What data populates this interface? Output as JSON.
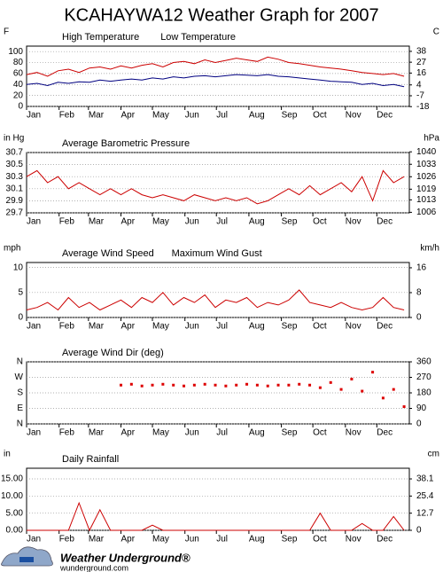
{
  "header": {
    "title": "KCAHAYWA12 Weather Graph for 2007"
  },
  "footer": {
    "brand": "Weather Underground®",
    "url": "wunderground.com"
  },
  "chart_data": [
    {
      "type": "line",
      "ylabel": "F",
      "y2label": "C",
      "grid": true,
      "x": [
        1,
        11,
        21,
        31,
        41,
        51,
        61,
        71,
        81,
        91,
        101,
        111,
        121,
        131,
        141,
        151,
        161,
        171,
        181,
        191,
        201,
        211,
        221,
        231,
        241,
        251,
        261,
        271,
        281,
        291,
        301,
        311,
        321,
        331,
        341,
        351,
        361
      ],
      "xlim": [
        1,
        366
      ],
      "xticks": [
        {
          "value": 1,
          "label": "Jan"
        },
        {
          "value": 32,
          "label": "Feb"
        },
        {
          "value": 60,
          "label": "Mar"
        },
        {
          "value": 91,
          "label": "Apr"
        },
        {
          "value": 121,
          "label": "May"
        },
        {
          "value": 152,
          "label": "Jun"
        },
        {
          "value": 182,
          "label": "Jul"
        },
        {
          "value": 213,
          "label": "Aug"
        },
        {
          "value": 244,
          "label": "Sep"
        },
        {
          "value": 274,
          "label": "Oct"
        },
        {
          "value": 305,
          "label": "Nov"
        },
        {
          "value": 335,
          "label": "Dec"
        }
      ],
      "ylim": [
        0,
        110
      ],
      "yticks": [
        0,
        20,
        40,
        60,
        80,
        100
      ],
      "y2lim": [
        -17.8,
        43.3
      ],
      "y2ticks": [
        -18,
        -7,
        4,
        16,
        27,
        38
      ],
      "series": [
        {
          "name": "High Temperature",
          "color": "#cc0000",
          "values": [
            58,
            62,
            55,
            65,
            68,
            62,
            70,
            72,
            68,
            74,
            70,
            75,
            78,
            72,
            80,
            82,
            78,
            85,
            80,
            84,
            88,
            85,
            82,
            90,
            86,
            80,
            78,
            75,
            72,
            70,
            68,
            65,
            62,
            60,
            58,
            60,
            55
          ]
        },
        {
          "name": "Low Temperature",
          "color": "#000080",
          "values": [
            40,
            42,
            38,
            44,
            42,
            45,
            44,
            48,
            46,
            48,
            50,
            48,
            52,
            50,
            54,
            52,
            55,
            56,
            54,
            56,
            58,
            57,
            56,
            58,
            55,
            54,
            52,
            50,
            48,
            46,
            45,
            44,
            40,
            42,
            38,
            40,
            36
          ]
        }
      ]
    },
    {
      "type": "line",
      "ylabel": "in Hg",
      "y2label": "hPa",
      "grid": true,
      "x": [
        1,
        11,
        21,
        31,
        41,
        51,
        61,
        71,
        81,
        91,
        101,
        111,
        121,
        131,
        141,
        151,
        161,
        171,
        181,
        191,
        201,
        211,
        221,
        231,
        241,
        251,
        261,
        271,
        281,
        291,
        301,
        311,
        321,
        331,
        341,
        351,
        361
      ],
      "xlim": [
        1,
        366
      ],
      "xticks": [
        {
          "value": 1,
          "label": "Jan"
        },
        {
          "value": 32,
          "label": "Feb"
        },
        {
          "value": 60,
          "label": "Mar"
        },
        {
          "value": 91,
          "label": "Apr"
        },
        {
          "value": 121,
          "label": "May"
        },
        {
          "value": 152,
          "label": "Jun"
        },
        {
          "value": 182,
          "label": "Jul"
        },
        {
          "value": 213,
          "label": "Aug"
        },
        {
          "value": 244,
          "label": "Sep"
        },
        {
          "value": 274,
          "label": "Oct"
        },
        {
          "value": 305,
          "label": "Nov"
        },
        {
          "value": 335,
          "label": "Dec"
        }
      ],
      "ylim": [
        29.7,
        30.7
      ],
      "yticks": [
        29.7,
        29.9,
        30.1,
        30.3,
        30.5,
        30.7
      ],
      "y2lim": [
        1005.7,
        1039.6
      ],
      "y2ticks": [
        1006,
        1013,
        1019,
        1026,
        1033,
        1040
      ],
      "series": [
        {
          "name": "Average Barometric Pressure",
          "color": "#cc0000",
          "values": [
            30.3,
            30.4,
            30.2,
            30.3,
            30.1,
            30.2,
            30.1,
            30.0,
            30.1,
            30.0,
            30.1,
            30.0,
            29.95,
            30.0,
            29.95,
            29.9,
            30.0,
            29.95,
            29.9,
            29.95,
            29.9,
            29.95,
            29.85,
            29.9,
            30.0,
            30.1,
            30.0,
            30.15,
            30.0,
            30.1,
            30.2,
            30.05,
            30.3,
            29.9,
            30.4,
            30.2,
            30.3
          ]
        }
      ]
    },
    {
      "type": "line",
      "ylabel": "mph",
      "y2label": "km/h",
      "grid": true,
      "x": [
        1,
        11,
        21,
        31,
        41,
        51,
        61,
        71,
        81,
        91,
        101,
        111,
        121,
        131,
        141,
        151,
        161,
        171,
        181,
        191,
        201,
        211,
        221,
        231,
        241,
        251,
        261,
        271,
        281,
        291,
        301,
        311,
        321,
        331,
        341,
        351,
        361
      ],
      "xlim": [
        1,
        366
      ],
      "xticks": [
        {
          "value": 1,
          "label": "Jan"
        },
        {
          "value": 32,
          "label": "Feb"
        },
        {
          "value": 60,
          "label": "Mar"
        },
        {
          "value": 91,
          "label": "Apr"
        },
        {
          "value": 121,
          "label": "May"
        },
        {
          "value": 152,
          "label": "Jun"
        },
        {
          "value": 182,
          "label": "Jul"
        },
        {
          "value": 213,
          "label": "Aug"
        },
        {
          "value": 244,
          "label": "Sep"
        },
        {
          "value": 274,
          "label": "Oct"
        },
        {
          "value": 305,
          "label": "Nov"
        },
        {
          "value": 335,
          "label": "Dec"
        }
      ],
      "ylim": [
        0,
        11
      ],
      "yticks": [
        0,
        5,
        10
      ],
      "y2lim": [
        0,
        17.7
      ],
      "y2ticks": [
        0,
        8,
        16
      ],
      "series": [
        {
          "name": "Average Wind Speed",
          "color": "#cc0000",
          "values": [
            1.5,
            2,
            3,
            1.5,
            4,
            2,
            3,
            1.5,
            2.5,
            3.5,
            2,
            4,
            3,
            5,
            2.5,
            4,
            3,
            4.5,
            2,
            3.5,
            3,
            4,
            2,
            3,
            2.5,
            3.5,
            5.5,
            3,
            2.5,
            2,
            3,
            2,
            1.5,
            2,
            4,
            2,
            1.5
          ]
        },
        {
          "name": "Maximum Wind Gust",
          "color": "#000080",
          "values": [
            null,
            null,
            null,
            null,
            null,
            null,
            null,
            null,
            null,
            null,
            null,
            null,
            null,
            null,
            null,
            null,
            null,
            null,
            null,
            null,
            null,
            null,
            null,
            null,
            null,
            null,
            null,
            null,
            null,
            null,
            null,
            null,
            null,
            null,
            null,
            null,
            null
          ]
        }
      ]
    },
    {
      "type": "scatter",
      "grid": true,
      "x": [
        1,
        11,
        21,
        31,
        41,
        51,
        61,
        71,
        81,
        91,
        101,
        111,
        121,
        131,
        141,
        151,
        161,
        171,
        181,
        191,
        201,
        211,
        221,
        231,
        241,
        251,
        261,
        271,
        281,
        291,
        301,
        311,
        321,
        331,
        341,
        351,
        361
      ],
      "xlim": [
        1,
        366
      ],
      "xticks": [
        {
          "value": 1,
          "label": "Jan"
        },
        {
          "value": 32,
          "label": "Feb"
        },
        {
          "value": 60,
          "label": "Mar"
        },
        {
          "value": 91,
          "label": "Apr"
        },
        {
          "value": 121,
          "label": "May"
        },
        {
          "value": 152,
          "label": "Jun"
        },
        {
          "value": 182,
          "label": "Jul"
        },
        {
          "value": 213,
          "label": "Aug"
        },
        {
          "value": 244,
          "label": "Sep"
        },
        {
          "value": 274,
          "label": "Oct"
        },
        {
          "value": 305,
          "label": "Nov"
        },
        {
          "value": 335,
          "label": "Dec"
        }
      ],
      "ylim": [
        0,
        360
      ],
      "yticks": [
        {
          "value": 0,
          "label": "N"
        },
        {
          "value": 90,
          "label": "E"
        },
        {
          "value": 180,
          "label": "S"
        },
        {
          "value": 270,
          "label": "W"
        },
        {
          "value": 360,
          "label": "N"
        }
      ],
      "y2lim": [
        0,
        360
      ],
      "y2ticks": [
        0,
        90,
        180,
        270,
        360
      ],
      "series": [
        {
          "name": "Average Wind Dir (deg)",
          "color": "#dd0000",
          "values": [
            null,
            null,
            null,
            null,
            null,
            null,
            null,
            null,
            null,
            225,
            230,
            220,
            225,
            230,
            225,
            220,
            225,
            230,
            225,
            220,
            225,
            230,
            225,
            220,
            225,
            225,
            230,
            225,
            210,
            240,
            200,
            260,
            190,
            300,
            150,
            200,
            100
          ]
        }
      ]
    },
    {
      "type": "line",
      "ylabel": "in",
      "y2label": "cm",
      "grid": true,
      "x": [
        1,
        11,
        21,
        31,
        41,
        51,
        61,
        71,
        81,
        91,
        101,
        111,
        121,
        131,
        141,
        151,
        161,
        171,
        181,
        191,
        201,
        211,
        221,
        231,
        241,
        251,
        261,
        271,
        281,
        291,
        301,
        311,
        321,
        331,
        341,
        351,
        361
      ],
      "xlim": [
        1,
        366
      ],
      "xticks": [
        {
          "value": 1,
          "label": "Jan"
        },
        {
          "value": 32,
          "label": "Feb"
        },
        {
          "value": 60,
          "label": "Mar"
        },
        {
          "value": 91,
          "label": "Apr"
        },
        {
          "value": 121,
          "label": "May"
        },
        {
          "value": 152,
          "label": "Jun"
        },
        {
          "value": 182,
          "label": "Jul"
        },
        {
          "value": 213,
          "label": "Aug"
        },
        {
          "value": 244,
          "label": "Sep"
        },
        {
          "value": 274,
          "label": "Oct"
        },
        {
          "value": 305,
          "label": "Nov"
        },
        {
          "value": 335,
          "label": "Dec"
        }
      ],
      "ylim": [
        0,
        18.1
      ],
      "yticks": [
        {
          "value": 0,
          "label": "0.00"
        },
        {
          "value": 5,
          "label": "5.00"
        },
        {
          "value": 10,
          "label": "10.00"
        },
        {
          "value": 15,
          "label": "15.00"
        }
      ],
      "y2lim": [
        0,
        46
      ],
      "y2ticks": [
        0,
        12.7,
        25.4,
        38.1
      ],
      "series": [
        {
          "name": "Daily Rainfall",
          "color": "#cc0000",
          "values": [
            0,
            0,
            0,
            0,
            0,
            8,
            0,
            6,
            0,
            0,
            0,
            0,
            1.5,
            0,
            0,
            0,
            0,
            0,
            0,
            0,
            0,
            0,
            0,
            0,
            0,
            0,
            0,
            0,
            5,
            0,
            0,
            0,
            2,
            0,
            0,
            4,
            0
          ]
        }
      ]
    }
  ]
}
